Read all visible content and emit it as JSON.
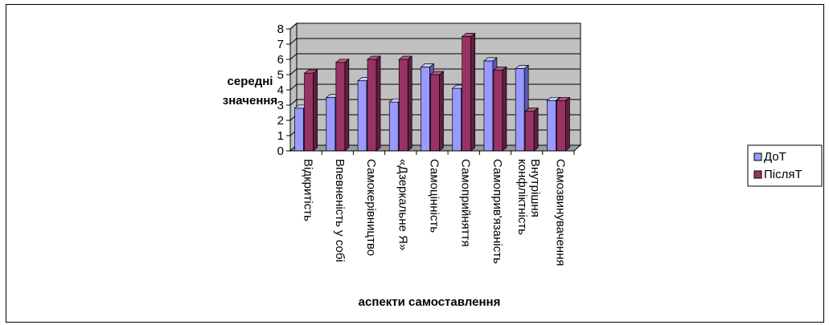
{
  "chart_data": {
    "type": "bar",
    "categories": [
      "Відкритість",
      "Впевненість у собі",
      "Самокерівництво",
      "«Дзеркальне Я»",
      "Самоцінність",
      "Самоприйняття",
      "Самоприв'язаність",
      "Внутрішня конфліктність",
      "Самозвинувачення"
    ],
    "series": [
      {
        "name": "ДоТ",
        "values": [
          2.8,
          3.5,
          4.6,
          3.2,
          5.5,
          4.1,
          5.9,
          5.4,
          3.3
        ]
      },
      {
        "name": "ПісляТ",
        "values": [
          5.1,
          5.8,
          6.0,
          6.0,
          5.0,
          7.5,
          5.3,
          2.6,
          3.3
        ]
      }
    ],
    "ylabel_line1": "середні",
    "ylabel_line2": "значення",
    "xlabel": "аспекти самоставлення",
    "ylim": [
      0,
      8
    ],
    "yticks": [
      "0",
      "1",
      "2",
      "3",
      "4",
      "5",
      "6",
      "7",
      "8"
    ],
    "grid": true,
    "legend_position": "right",
    "colors": {
      "series_front": [
        "#9999ff",
        "#993366"
      ],
      "series_top": [
        "#c9c9ff",
        "#b8557f"
      ],
      "series_side": [
        "#5a5ab0",
        "#5e1f3d"
      ],
      "wall": "#c0c0c0",
      "floor": "#9a9a9a"
    }
  }
}
